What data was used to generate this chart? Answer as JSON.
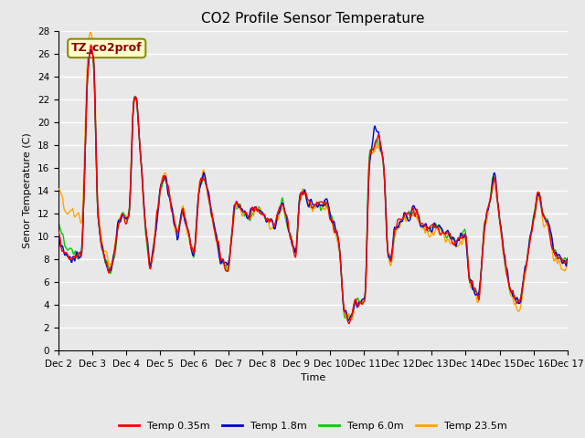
{
  "title": "CO2 Profile Sensor Temperature",
  "xlabel": "Time",
  "ylabel": "Senor Temperature (C)",
  "ylim": [
    0,
    28
  ],
  "yticks": [
    0,
    2,
    4,
    6,
    8,
    10,
    12,
    14,
    16,
    18,
    20,
    22,
    24,
    26,
    28
  ],
  "xtick_labels": [
    "Dec 2",
    "Dec 3",
    "Dec 4",
    "Dec 5",
    "Dec 6",
    "Dec 7",
    "Dec 8",
    "Dec 9",
    "Dec 10",
    "Dec 11",
    "Dec 12",
    "Dec 13",
    "Dec 14",
    "Dec 15",
    "Dec 16",
    "Dec 17"
  ],
  "annotation_text": "TZ_co2prof",
  "annotation_color": "#8B0000",
  "annotation_bg": "#FFFFCC",
  "annotation_border": "#8B8B00",
  "series": {
    "temp_035m": {
      "label": "Temp 0.35m",
      "color": "#FF0000",
      "linewidth": 1.0
    },
    "temp_18m": {
      "label": "Temp 1.8m",
      "color": "#0000CC",
      "linewidth": 1.0
    },
    "temp_60m": {
      "label": "Temp 6.0m",
      "color": "#00CC00",
      "linewidth": 1.0
    },
    "temp_235m": {
      "label": "Temp 23.5m",
      "color": "#FFA500",
      "linewidth": 1.0
    }
  },
  "bg_color": "#E8E8E8",
  "grid_color": "#FFFFFF",
  "title_fontsize": 11,
  "axis_fontsize": 8,
  "tick_fontsize": 7.5,
  "legend_fontsize": 8
}
